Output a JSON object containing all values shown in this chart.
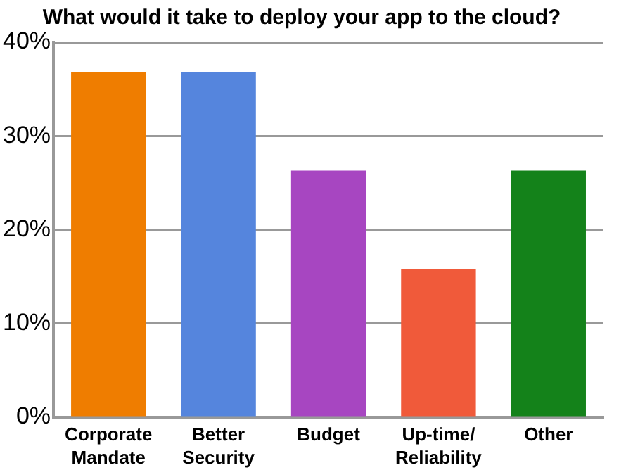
{
  "chart_data": {
    "type": "bar",
    "title": "What would it take to deploy your app to the cloud?",
    "categories": [
      "Corporate Mandate",
      "Better Security",
      "Budget",
      "Up-time/ Reliability",
      "Other"
    ],
    "values": [
      36.8,
      36.8,
      26.3,
      15.8,
      26.3
    ],
    "colors": [
      "#ef7d00",
      "#5585dd",
      "#a746c1",
      "#f05a3a",
      "#14821a"
    ],
    "ylim": [
      0,
      40
    ],
    "yticks": [
      {
        "value": 0,
        "label": "0%"
      },
      {
        "value": 10,
        "label": "10%"
      },
      {
        "value": 20,
        "label": "20%"
      },
      {
        "value": 30,
        "label": "30%"
      },
      {
        "value": 40,
        "label": "40%"
      }
    ],
    "grid": "y"
  }
}
